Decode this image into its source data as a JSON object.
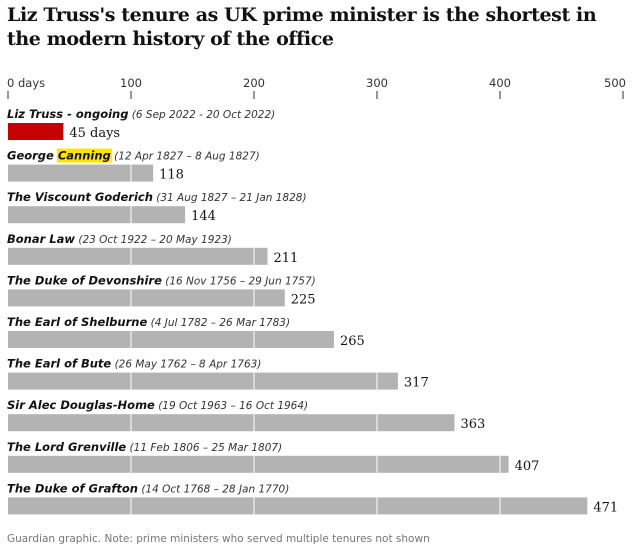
{
  "title": "Liz Truss's tenure as UK prime minister is the shortest in the modern history of the office",
  "note": "Guardian graphic. Note: prime ministers who served multiple tenures not shown",
  "colors": {
    "highlight_bar": "#c70000",
    "bar": "#b3b3b3",
    "name_highlight": "#ffe500",
    "gridline": "#ffffff",
    "axis_tick": "#333333"
  },
  "chart_data": {
    "type": "bar",
    "orientation": "horizontal",
    "xlim": [
      0,
      500
    ],
    "x_ticks": [
      {
        "value": 0,
        "label": "0 days"
      },
      {
        "value": 100,
        "label": "100"
      },
      {
        "value": 200,
        "label": "200"
      },
      {
        "value": 300,
        "label": "300"
      },
      {
        "value": 400,
        "label": "400"
      },
      {
        "value": 500,
        "label": "500"
      }
    ],
    "rows": [
      {
        "name": "Liz Truss - ongoing",
        "dates": "(6 Sep 2022 - 20 Oct 2022)",
        "value": 45,
        "value_label": "45 days",
        "highlight": true
      },
      {
        "name_before": "George ",
        "name_highlight": "Canning",
        "dates": "(12 Apr 1827 – 8 Aug 1827)",
        "value": 118,
        "value_label": "118"
      },
      {
        "name": "The Viscount Goderich",
        "dates": "(31 Aug 1827 – 21 Jan 1828)",
        "value": 144,
        "value_label": "144"
      },
      {
        "name": "Bonar Law",
        "dates": "(23 Oct 1922 – 20 May 1923)",
        "value": 211,
        "value_label": "211"
      },
      {
        "name": "The Duke of Devonshire",
        "dates": "(16 Nov 1756 – 29 Jun 1757)",
        "value": 225,
        "value_label": "225"
      },
      {
        "name": "The Earl of Shelburne",
        "dates": "(4 Jul 1782 – 26 Mar 1783)",
        "value": 265,
        "value_label": "265"
      },
      {
        "name": "The Earl of Bute",
        "dates": "(26 May 1762 – 8 Apr 1763)",
        "value": 317,
        "value_label": "317"
      },
      {
        "name": "Sir Alec Douglas-Home",
        "dates": "(19 Oct 1963 – 16 Oct 1964)",
        "value": 363,
        "value_label": "363"
      },
      {
        "name": "The Lord Grenville",
        "dates": "(11 Feb 1806 – 25 Mar 1807)",
        "value": 407,
        "value_label": "407"
      },
      {
        "name": "The Duke of Grafton",
        "dates": "(14 Oct 1768 – 28 Jan 1770)",
        "value": 471,
        "value_label": "471"
      }
    ]
  }
}
